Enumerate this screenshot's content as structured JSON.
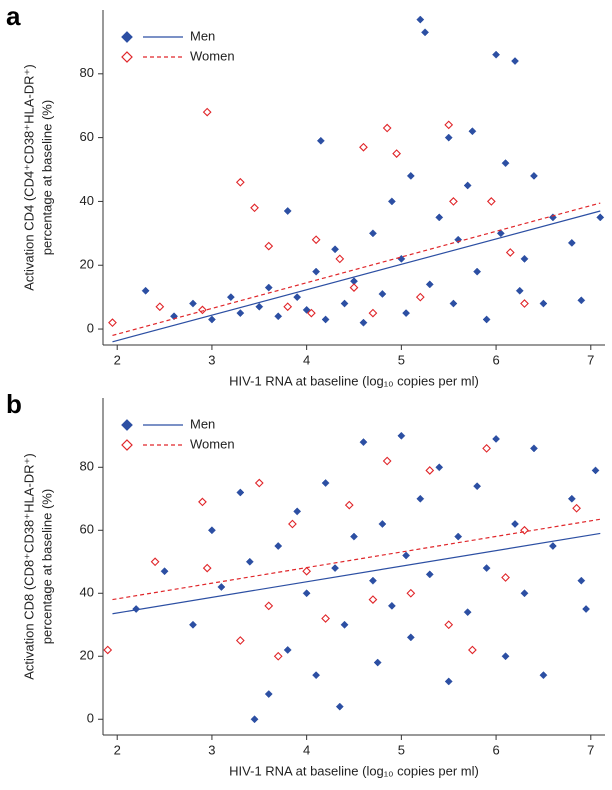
{
  "chart_data": [
    {
      "type": "scatter",
      "panel": "a",
      "ylabel": [
        "Activation CD4 (CD4⁺CD38⁺HLA-DR⁺)",
        "percentage at baseline (%)"
      ],
      "xlabel": "HIV-1 RNA at baseline (log₁₀ copies per ml)",
      "xlim": [
        1.85,
        7.15
      ],
      "ylim": [
        -5,
        100
      ],
      "xticks": [
        2,
        3,
        4,
        5,
        6,
        7
      ],
      "yticks": [
        0,
        20,
        40,
        60,
        80
      ],
      "series": [
        {
          "name": "Men",
          "color": "#2c4fa3",
          "marker": "filled",
          "line_style": "solid",
          "x": [
            2.3,
            2.6,
            2.8,
            3.0,
            3.2,
            3.3,
            3.5,
            3.6,
            3.7,
            3.8,
            3.9,
            4.0,
            4.1,
            4.2,
            4.3,
            4.4,
            4.5,
            4.6,
            4.7,
            4.8,
            4.9,
            5.0,
            5.05,
            5.1,
            5.2,
            5.25,
            5.3,
            5.4,
            5.5,
            5.55,
            5.6,
            5.7,
            5.8,
            5.9,
            6.0,
            6.05,
            6.1,
            6.2,
            6.25,
            6.3,
            6.4,
            6.5,
            6.6,
            6.8,
            6.9,
            7.1,
            4.15,
            5.75
          ],
          "values": [
            12,
            4,
            8,
            3,
            10,
            5,
            7,
            13,
            4,
            37,
            10,
            6,
            18,
            3,
            25,
            8,
            15,
            2,
            30,
            11,
            40,
            22,
            5,
            48,
            97,
            93,
            14,
            35,
            60,
            8,
            28,
            45,
            18,
            3,
            86,
            30,
            52,
            84,
            12,
            22,
            48,
            8,
            35,
            27,
            9,
            35,
            59,
            62
          ],
          "fit": {
            "x": [
              1.95,
              7.1
            ],
            "values": [
              -4,
              37
            ]
          }
        },
        {
          "name": "Women",
          "color": "#e0262a",
          "marker": "open",
          "line_style": "dashed",
          "x": [
            1.95,
            2.45,
            2.9,
            2.95,
            3.3,
            3.45,
            3.6,
            3.8,
            4.05,
            4.1,
            4.35,
            4.6,
            4.7,
            4.85,
            4.95,
            5.2,
            5.5,
            5.55,
            5.95,
            6.15,
            6.3,
            4.5
          ],
          "values": [
            2,
            7,
            6,
            68,
            46,
            38,
            26,
            7,
            5,
            28,
            22,
            57,
            5,
            63,
            55,
            10,
            64,
            40,
            40,
            24,
            8,
            13
          ],
          "fit": {
            "x": [
              1.95,
              7.1
            ],
            "values": [
              -2,
              39.5
            ]
          }
        }
      ]
    },
    {
      "type": "scatter",
      "panel": "b",
      "ylabel": [
        "Activation CD8 (CD8⁺CD38⁺HLA-DR⁺)",
        "percentage at baseline (%)"
      ],
      "xlabel": "HIV-1 RNA at baseline (log₁₀ copies per ml)",
      "xlim": [
        1.85,
        7.15
      ],
      "ylim": [
        -5,
        102
      ],
      "xticks": [
        2,
        3,
        4,
        5,
        6,
        7
      ],
      "yticks": [
        0,
        20,
        40,
        60,
        80
      ],
      "series": [
        {
          "name": "Men",
          "color": "#2c4fa3",
          "marker": "filled",
          "line_style": "solid",
          "x": [
            2.2,
            2.5,
            2.8,
            3.0,
            3.1,
            3.3,
            3.4,
            3.45,
            3.6,
            3.7,
            3.8,
            3.9,
            4.0,
            4.1,
            4.2,
            4.3,
            4.35,
            4.4,
            4.5,
            4.6,
            4.7,
            4.75,
            4.8,
            4.9,
            5.0,
            5.05,
            5.1,
            5.2,
            5.3,
            5.4,
            5.5,
            5.6,
            5.7,
            5.8,
            5.9,
            6.0,
            6.1,
            6.2,
            6.3,
            6.4,
            6.5,
            6.6,
            6.8,
            6.9,
            7.05,
            6.95
          ],
          "values": [
            35,
            47,
            30,
            60,
            42,
            72,
            50,
            0,
            8,
            55,
            22,
            66,
            40,
            14,
            75,
            48,
            4,
            30,
            58,
            88,
            44,
            18,
            62,
            36,
            90,
            52,
            26,
            70,
            46,
            80,
            12,
            58,
            34,
            74,
            48,
            89,
            20,
            62,
            40,
            86,
            14,
            55,
            70,
            44,
            79,
            35
          ],
          "fit": {
            "x": [
              1.95,
              7.1
            ],
            "values": [
              33.5,
              59
            ]
          }
        },
        {
          "name": "Women",
          "color": "#e0262a",
          "marker": "open",
          "line_style": "dashed",
          "x": [
            1.9,
            2.4,
            2.9,
            2.95,
            3.3,
            3.5,
            3.6,
            3.7,
            3.85,
            4.0,
            4.2,
            4.45,
            4.7,
            4.85,
            5.1,
            5.3,
            5.5,
            5.9,
            6.1,
            6.3,
            6.85,
            5.75
          ],
          "values": [
            22,
            50,
            69,
            48,
            25,
            75,
            36,
            20,
            62,
            47,
            32,
            68,
            38,
            82,
            40,
            79,
            30,
            86,
            45,
            60,
            67,
            22
          ],
          "fit": {
            "x": [
              1.95,
              7.1
            ],
            "values": [
              38,
              63.5
            ]
          }
        }
      ]
    }
  ]
}
